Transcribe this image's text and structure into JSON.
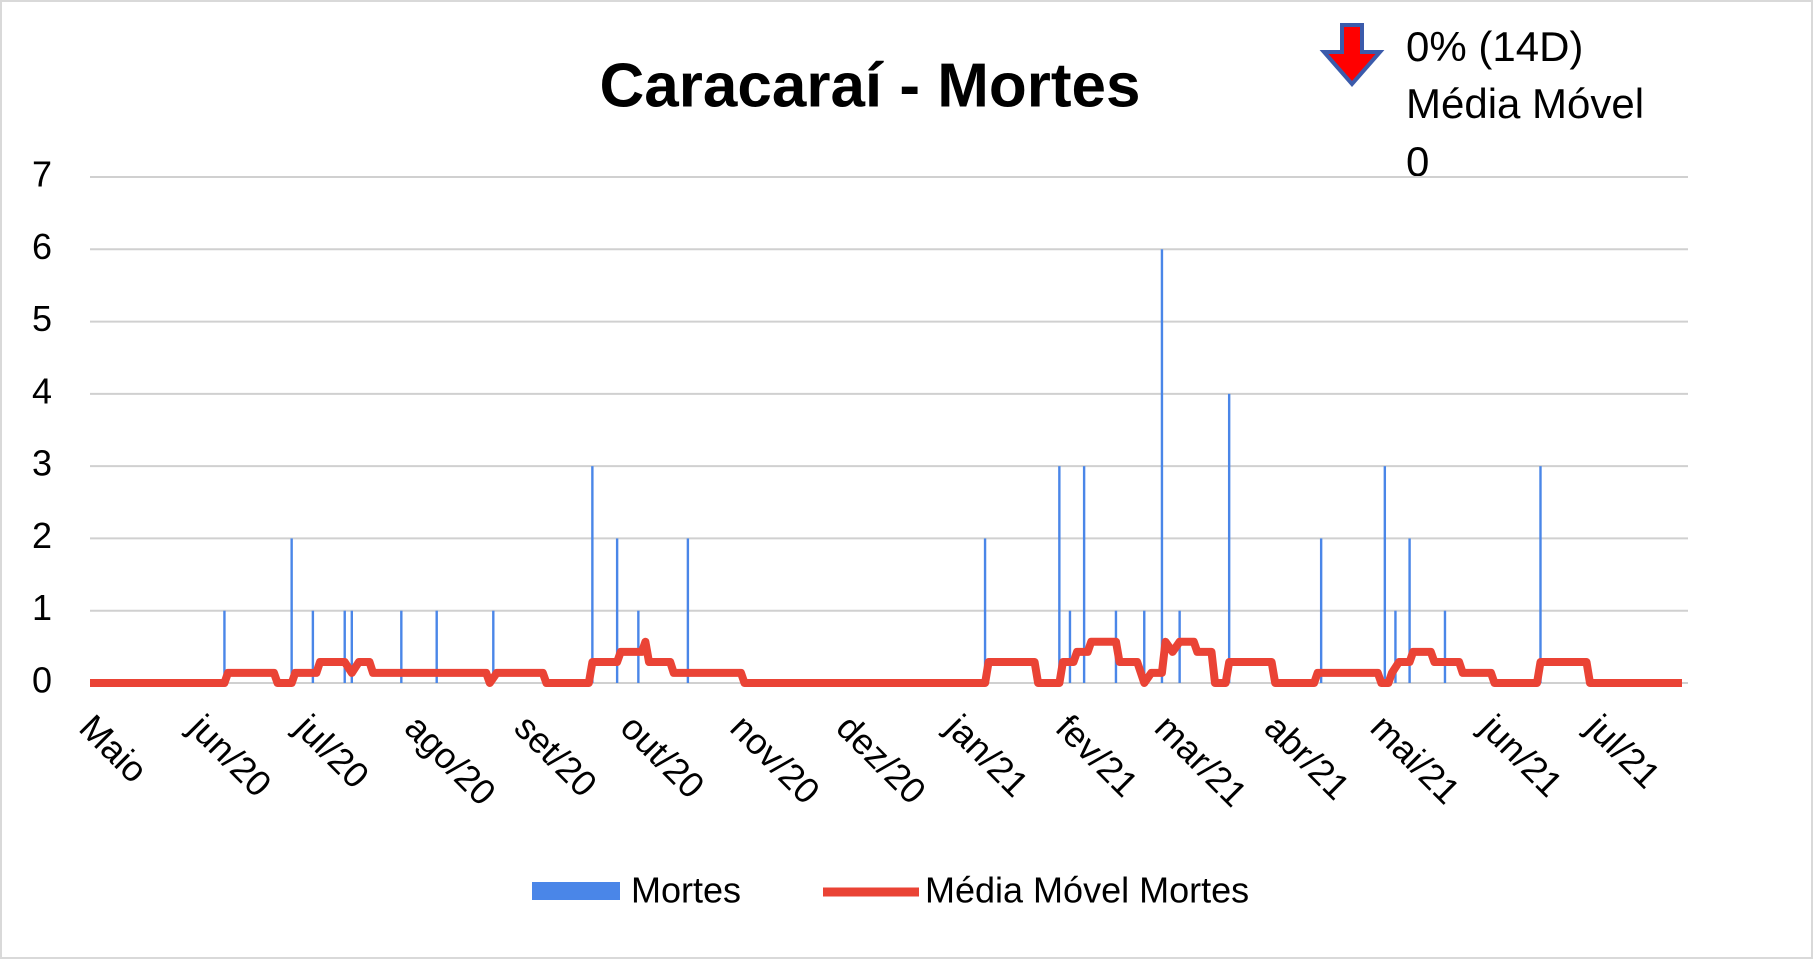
{
  "chart_data": {
    "type": "bar-line",
    "title": "Caracaraí - Mortes",
    "annotations": [
      "0% (14D)",
      "Média Móvel",
      "0"
    ],
    "xlim": [
      0,
      450
    ],
    "xticks": [
      {
        "value": 0,
        "label": "Maio"
      },
      {
        "value": 31,
        "label": "jun/20"
      },
      {
        "value": 61,
        "label": "jul/20"
      },
      {
        "value": 92,
        "label": "ago/20"
      },
      {
        "value": 123,
        "label": "set/20"
      },
      {
        "value": 153,
        "label": "out/20"
      },
      {
        "value": 184,
        "label": "nov/20"
      },
      {
        "value": 214,
        "label": "dez/20"
      },
      {
        "value": 245,
        "label": "jan/21"
      },
      {
        "value": 276,
        "label": "fev/21"
      },
      {
        "value": 304,
        "label": "mar/21"
      },
      {
        "value": 335,
        "label": "abr/21"
      },
      {
        "value": 365,
        "label": "mai/21"
      },
      {
        "value": 396,
        "label": "jun/21"
      },
      {
        "value": 426,
        "label": "jul/21"
      }
    ],
    "ylim": [
      0,
      7
    ],
    "yticks": [
      0,
      1,
      2,
      3,
      4,
      5,
      6,
      7
    ],
    "grid": true,
    "legend": "bottom",
    "series": [
      {
        "name": "Mortes",
        "type": "bar",
        "color": "#4a86e8",
        "x": [
          38,
          57,
          63,
          72,
          74,
          88,
          98,
          114,
          142,
          149,
          155,
          169,
          253,
          274,
          277,
          281,
          290,
          298,
          303,
          308,
          322,
          348,
          366,
          369,
          373,
          383,
          410
        ],
        "values": [
          1,
          2,
          1,
          1,
          1,
          1,
          1,
          1,
          3,
          2,
          1,
          2,
          2,
          3,
          1,
          3,
          1,
          1,
          6,
          1,
          4,
          2,
          3,
          1,
          2,
          1,
          3
        ]
      },
      {
        "name": "Média Móvel Mortes",
        "type": "line",
        "color": "#ea4335",
        "x": [
          0,
          38,
          39,
          52,
          53,
          57,
          58,
          64,
          65,
          72,
          74,
          76,
          79,
          80,
          112,
          113,
          115,
          128,
          129,
          141,
          142,
          149,
          150,
          156,
          157,
          158,
          164,
          165,
          169,
          170,
          184,
          185,
          253,
          254,
          267,
          268,
          274,
          275,
          278,
          279,
          282,
          283,
          290,
          291,
          296,
          298,
          300,
          303,
          304,
          306,
          308,
          312,
          313,
          317,
          318,
          321,
          322,
          334,
          335,
          346,
          347,
          364,
          365,
          367,
          368,
          370,
          373,
          374,
          379,
          380,
          387,
          388,
          396,
          397,
          409,
          410,
          423,
          424,
          450
        ],
        "values": [
          0,
          0,
          0.14,
          0.14,
          0,
          0,
          0.14,
          0.14,
          0.29,
          0.29,
          0.14,
          0.29,
          0.29,
          0.14,
          0.14,
          0,
          0.14,
          0.14,
          0,
          0,
          0.29,
          0.29,
          0.43,
          0.43,
          0.57,
          0.29,
          0.29,
          0.14,
          0.14,
          0.14,
          0.14,
          0,
          0,
          0.29,
          0.29,
          0,
          0,
          0.29,
          0.29,
          0.43,
          0.43,
          0.57,
          0.57,
          0.29,
          0.29,
          0,
          0.14,
          0.14,
          0.57,
          0.43,
          0.57,
          0.57,
          0.43,
          0.43,
          0,
          0,
          0.29,
          0.29,
          0,
          0,
          0.14,
          0.14,
          0,
          0,
          0.14,
          0.29,
          0.29,
          0.43,
          0.43,
          0.29,
          0.29,
          0.14,
          0.14,
          0,
          0,
          0.29,
          0.29,
          0,
          0
        ]
      }
    ]
  }
}
